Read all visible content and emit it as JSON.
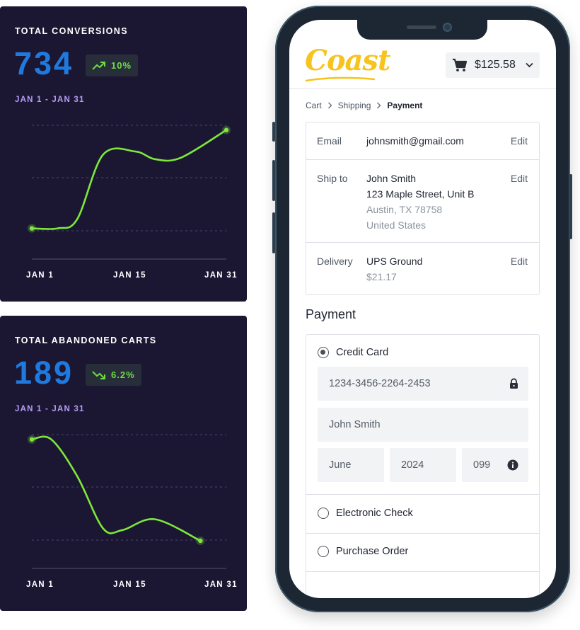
{
  "cards": [
    {
      "title": "TOTAL CONVERSIONS",
      "value": "734",
      "trend": "up",
      "change": "10%",
      "range": "JAN 1 - JAN 31",
      "accent": "#1f7ae0",
      "line_color": "#7ee83a"
    },
    {
      "title": "TOTAL ABANDONED CARTS",
      "value": "189",
      "trend": "down",
      "change": "6.2%",
      "range": "JAN 1 - JAN 31",
      "accent": "#1f7ae0",
      "line_color": "#7ee83a"
    }
  ],
  "chart_data": [
    {
      "type": "line",
      "x_ticks": [
        "JAN 1",
        "JAN 15",
        "JAN 31"
      ],
      "x": [
        1,
        5,
        8,
        12,
        17,
        20,
        24,
        31
      ],
      "values": [
        1.0,
        1.0,
        1.3,
        3.4,
        3.5,
        3.25,
        3.3,
        4.2
      ],
      "ylim": [
        0,
        5
      ],
      "grid": true
    },
    {
      "type": "line",
      "x_ticks": [
        "JAN 1",
        "JAN 15",
        "JAN 31"
      ],
      "x": [
        1,
        4,
        8,
        12,
        15,
        20,
        27
      ],
      "values": [
        4.2,
        4.2,
        3.0,
        1.3,
        1.25,
        1.6,
        0.9
      ],
      "ylim": [
        0,
        5
      ],
      "grid": true
    }
  ],
  "app": {
    "logo": "Coast",
    "cart_total": "$125.58",
    "breadcrumb": [
      "Cart",
      "Shipping",
      "Payment"
    ],
    "summary": {
      "email": {
        "label": "Email",
        "value": "johnsmith@gmail.com",
        "edit": "Edit"
      },
      "ship_to": {
        "label": "Ship to",
        "name": "John Smith",
        "street": "123 Maple Street, Unit B",
        "city": "Austin, TX 78758",
        "country": "United States",
        "edit": "Edit"
      },
      "delivery": {
        "label": "Delivery",
        "method": "UPS Ground",
        "price": "$21.17",
        "edit": "Edit"
      }
    },
    "payment": {
      "title": "Payment",
      "options": [
        "Credit Card",
        "Electronic Check",
        "Purchase Order"
      ],
      "selected": "Credit Card",
      "card_number": "1234-3456-2264-2453",
      "card_name": "John Smith",
      "exp_month": "June",
      "exp_year": "2024",
      "cvv": "099"
    }
  }
}
